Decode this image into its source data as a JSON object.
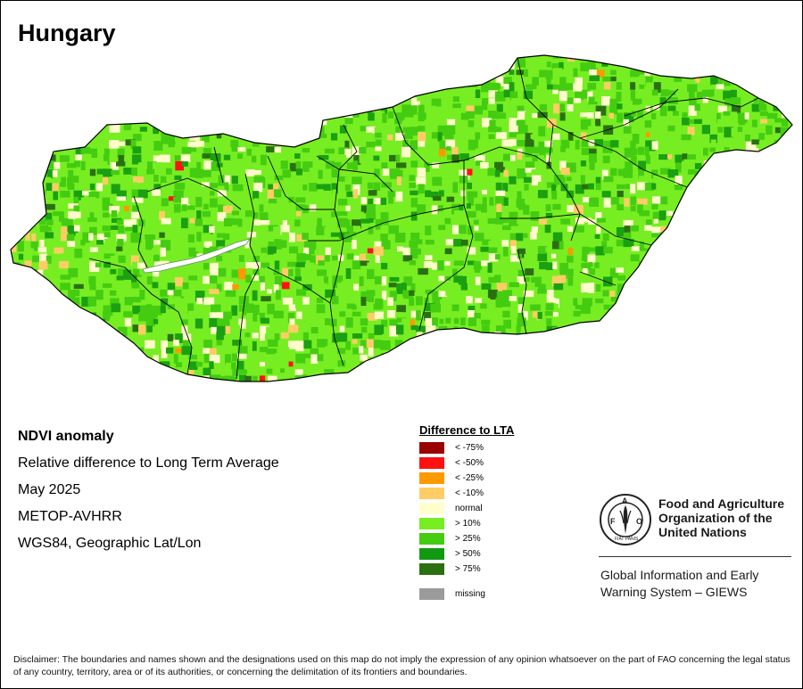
{
  "map": {
    "title": "Hungary",
    "theme": "NDVI anomaly relative to long term average",
    "colors": {
      "pos10": "#77ee22",
      "pos25": "#44cc11",
      "pos50": "#1aa010",
      "pos75": "#2a7010",
      "normal": "#fffccc",
      "neg10": "#ffcc66",
      "neg25": "#ff9900",
      "neg50": "#ff1111",
      "neg75": "#990000",
      "missing": "#9b9b9b",
      "boundary": "#000000"
    }
  },
  "info": {
    "product": "NDVI anomaly",
    "description": "Relative difference to Long Term Average",
    "period": "May 2025",
    "sensor": "METOP-AVHRR",
    "projection": "WGS84, Geographic Lat/Lon"
  },
  "legend": {
    "title": "Difference to LTA",
    "items": [
      {
        "label": "< -75%",
        "color": "#990000"
      },
      {
        "label": "< -50%",
        "color": "#ff1111"
      },
      {
        "label": "< -25%",
        "color": "#ff9900"
      },
      {
        "label": "< -10%",
        "color": "#ffcc66"
      },
      {
        "label": "normal",
        "color": "#ffffcc"
      },
      {
        "label": "> 10%",
        "color": "#77ee22"
      },
      {
        "label": "> 25%",
        "color": "#44cc11"
      },
      {
        "label": "> 50%",
        "color": "#119911"
      },
      {
        "label": "> 75%",
        "color": "#2a6f10"
      }
    ],
    "missing": {
      "label": "missing",
      "color": "#9b9b9b"
    }
  },
  "fao": {
    "logo_letters": "FAO",
    "logo_motto": "FIAT PANIS",
    "name_line1": "Food and Agriculture",
    "name_line2": "Organization of the",
    "name_line3": "United Nations",
    "system_line1": "Global Information and Early",
    "system_line2": "Warning System – GIEWS"
  },
  "disclaimer": "Disclaimer: The boundaries and names shown and the designations used on this map do not imply the expression of any opinion whatsoever on the part of FAO concerning the legal status of any country, territory, area or of its authorities, or concerning the delimitation of its frontiers and boundaries."
}
